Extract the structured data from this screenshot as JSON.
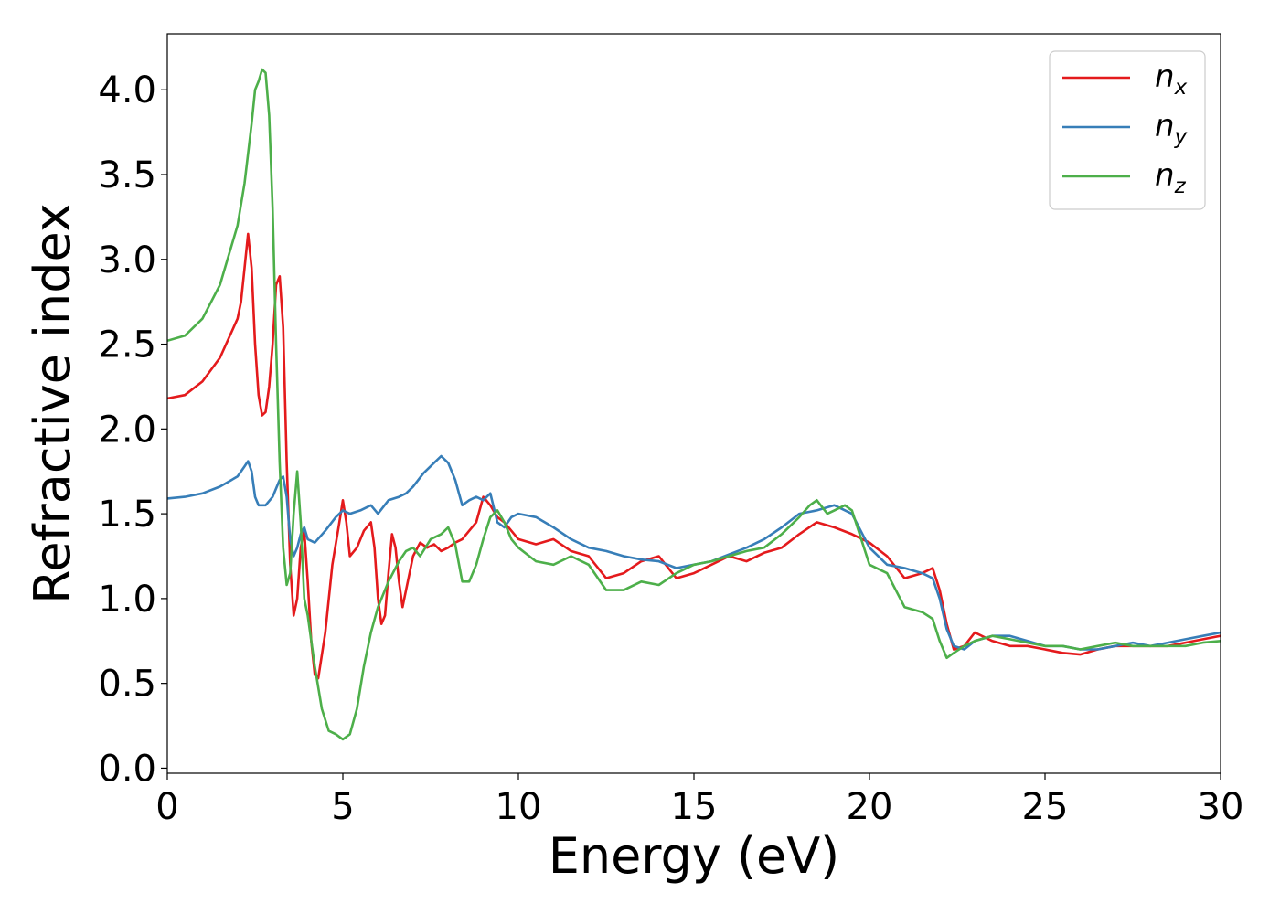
{
  "chart_data": {
    "type": "line",
    "xlabel": "Energy (eV)",
    "ylabel": "Refractive index",
    "xlim": [
      0,
      30
    ],
    "ylim": [
      -0.03,
      4.33
    ],
    "xticks": [
      "0",
      "5",
      "10",
      "15",
      "20",
      "25",
      "30"
    ],
    "yticks": [
      "0.0",
      "0.5",
      "1.0",
      "1.5",
      "2.0",
      "2.5",
      "3.0",
      "3.5",
      "4.0"
    ],
    "grid": false,
    "legend_position": "top-right",
    "series": [
      {
        "name": "n",
        "subscript": "x",
        "color": "#e41a1c",
        "x": [
          0,
          0.5,
          1,
          1.5,
          2,
          2.1,
          2.2,
          2.3,
          2.4,
          2.5,
          2.6,
          2.7,
          2.8,
          2.9,
          3.0,
          3.1,
          3.2,
          3.3,
          3.4,
          3.5,
          3.6,
          3.7,
          3.8,
          3.9,
          4.0,
          4.1,
          4.2,
          4.3,
          4.5,
          4.7,
          4.9,
          5.0,
          5.1,
          5.2,
          5.4,
          5.6,
          5.8,
          5.9,
          6.0,
          6.1,
          6.2,
          6.3,
          6.4,
          6.5,
          6.6,
          6.7,
          6.8,
          7.0,
          7.2,
          7.4,
          7.6,
          7.8,
          8.0,
          8.2,
          8.4,
          8.6,
          8.8,
          9.0,
          9.2,
          9.4,
          9.6,
          9.8,
          10.0,
          10.5,
          11.0,
          11.5,
          12.0,
          12.5,
          13.0,
          13.5,
          14.0,
          14.5,
          15.0,
          15.5,
          16.0,
          16.5,
          17.0,
          17.5,
          18.0,
          18.5,
          19.0,
          19.5,
          20.0,
          20.5,
          21.0,
          21.5,
          21.8,
          22.0,
          22.2,
          22.4,
          22.7,
          23.0,
          23.5,
          24.0,
          24.5,
          25.0,
          25.5,
          26.0,
          26.5,
          27.0,
          27.5,
          28.0,
          28.5,
          29.0,
          29.5,
          30.0
        ],
        "y": [
          2.18,
          2.2,
          2.28,
          2.42,
          2.65,
          2.75,
          2.95,
          3.15,
          2.95,
          2.5,
          2.2,
          2.08,
          2.1,
          2.25,
          2.5,
          2.85,
          2.9,
          2.6,
          1.8,
          1.2,
          0.9,
          1.0,
          1.3,
          1.4,
          1.1,
          0.75,
          0.55,
          0.53,
          0.8,
          1.2,
          1.45,
          1.58,
          1.45,
          1.25,
          1.3,
          1.4,
          1.45,
          1.3,
          1.0,
          0.85,
          0.9,
          1.15,
          1.38,
          1.3,
          1.1,
          0.95,
          1.05,
          1.25,
          1.33,
          1.3,
          1.32,
          1.28,
          1.3,
          1.33,
          1.35,
          1.4,
          1.45,
          1.6,
          1.55,
          1.48,
          1.45,
          1.4,
          1.35,
          1.32,
          1.35,
          1.28,
          1.25,
          1.12,
          1.15,
          1.22,
          1.25,
          1.12,
          1.15,
          1.2,
          1.25,
          1.22,
          1.27,
          1.3,
          1.38,
          1.45,
          1.42,
          1.38,
          1.33,
          1.25,
          1.12,
          1.15,
          1.18,
          1.05,
          0.85,
          0.7,
          0.72,
          0.8,
          0.75,
          0.72,
          0.72,
          0.7,
          0.68,
          0.67,
          0.7,
          0.72,
          0.72,
          0.72,
          0.72,
          0.74,
          0.76,
          0.78
        ]
      },
      {
        "name": "n",
        "subscript": "y",
        "color": "#377eb8",
        "x": [
          0,
          0.5,
          1,
          1.5,
          2,
          2.2,
          2.3,
          2.4,
          2.5,
          2.6,
          2.8,
          3.0,
          3.2,
          3.3,
          3.4,
          3.5,
          3.6,
          3.7,
          3.8,
          3.9,
          4.0,
          4.2,
          4.5,
          4.8,
          5.0,
          5.2,
          5.5,
          5.8,
          6.0,
          6.3,
          6.6,
          6.8,
          7.0,
          7.3,
          7.6,
          7.8,
          8.0,
          8.2,
          8.4,
          8.6,
          8.8,
          9.0,
          9.2,
          9.4,
          9.6,
          9.8,
          10.0,
          10.5,
          11.0,
          11.5,
          12.0,
          12.5,
          13.0,
          13.5,
          14.0,
          14.5,
          15.0,
          15.5,
          16.0,
          16.5,
          17.0,
          17.5,
          18.0,
          18.5,
          19.0,
          19.5,
          20.0,
          20.5,
          21.0,
          21.5,
          21.8,
          22.0,
          22.2,
          22.4,
          22.7,
          23.0,
          23.5,
          24.0,
          24.5,
          25.0,
          25.5,
          26.0,
          26.5,
          27.0,
          27.5,
          28.0,
          28.5,
          29.0,
          29.5,
          30.0
        ],
        "y": [
          1.59,
          1.6,
          1.62,
          1.66,
          1.72,
          1.78,
          1.81,
          1.75,
          1.6,
          1.55,
          1.55,
          1.6,
          1.7,
          1.72,
          1.6,
          1.35,
          1.25,
          1.3,
          1.38,
          1.42,
          1.35,
          1.33,
          1.4,
          1.48,
          1.52,
          1.5,
          1.52,
          1.55,
          1.5,
          1.58,
          1.6,
          1.62,
          1.66,
          1.74,
          1.8,
          1.84,
          1.8,
          1.7,
          1.55,
          1.58,
          1.6,
          1.58,
          1.62,
          1.45,
          1.42,
          1.48,
          1.5,
          1.48,
          1.42,
          1.35,
          1.3,
          1.28,
          1.25,
          1.23,
          1.22,
          1.18,
          1.2,
          1.22,
          1.26,
          1.3,
          1.35,
          1.42,
          1.5,
          1.52,
          1.55,
          1.5,
          1.3,
          1.2,
          1.18,
          1.15,
          1.12,
          1.0,
          0.82,
          0.72,
          0.7,
          0.75,
          0.78,
          0.78,
          0.75,
          0.72,
          0.72,
          0.7,
          0.7,
          0.72,
          0.74,
          0.72,
          0.74,
          0.76,
          0.78,
          0.8
        ]
      },
      {
        "name": "n",
        "subscript": "z",
        "color": "#4daf4a",
        "x": [
          0,
          0.5,
          1,
          1.5,
          2,
          2.2,
          2.4,
          2.5,
          2.6,
          2.7,
          2.8,
          2.9,
          3.0,
          3.1,
          3.2,
          3.3,
          3.4,
          3.5,
          3.6,
          3.7,
          3.8,
          3.9,
          4.0,
          4.2,
          4.4,
          4.6,
          4.8,
          5.0,
          5.2,
          5.4,
          5.6,
          5.8,
          6.0,
          6.3,
          6.6,
          6.8,
          7.0,
          7.2,
          7.5,
          7.8,
          8.0,
          8.2,
          8.4,
          8.6,
          8.8,
          9.0,
          9.2,
          9.4,
          9.6,
          9.8,
          10.0,
          10.5,
          11.0,
          11.5,
          12.0,
          12.5,
          13.0,
          13.5,
          14.0,
          14.5,
          15.0,
          15.5,
          16.0,
          16.5,
          17.0,
          17.5,
          18.0,
          18.3,
          18.5,
          18.8,
          19.0,
          19.3,
          19.5,
          20.0,
          20.5,
          21.0,
          21.5,
          21.8,
          22.0,
          22.2,
          22.4,
          22.7,
          23.0,
          23.5,
          24.0,
          24.5,
          25.0,
          25.5,
          26.0,
          26.5,
          27.0,
          27.5,
          28.0,
          28.5,
          29.0,
          29.5,
          30.0
        ],
        "y": [
          2.52,
          2.55,
          2.65,
          2.85,
          3.2,
          3.45,
          3.8,
          4.0,
          4.05,
          4.12,
          4.1,
          3.85,
          3.3,
          2.5,
          1.8,
          1.3,
          1.08,
          1.15,
          1.5,
          1.75,
          1.45,
          1.0,
          0.9,
          0.6,
          0.35,
          0.22,
          0.2,
          0.17,
          0.2,
          0.35,
          0.6,
          0.8,
          0.95,
          1.1,
          1.22,
          1.28,
          1.3,
          1.25,
          1.35,
          1.38,
          1.42,
          1.32,
          1.1,
          1.1,
          1.2,
          1.35,
          1.48,
          1.52,
          1.45,
          1.35,
          1.3,
          1.22,
          1.2,
          1.25,
          1.2,
          1.05,
          1.05,
          1.1,
          1.08,
          1.15,
          1.2,
          1.22,
          1.25,
          1.28,
          1.3,
          1.38,
          1.48,
          1.55,
          1.58,
          1.5,
          1.52,
          1.55,
          1.52,
          1.2,
          1.15,
          0.95,
          0.92,
          0.88,
          0.75,
          0.65,
          0.68,
          0.72,
          0.75,
          0.78,
          0.76,
          0.74,
          0.72,
          0.72,
          0.7,
          0.72,
          0.74,
          0.72,
          0.72,
          0.72,
          0.72,
          0.74,
          0.75
        ]
      }
    ]
  }
}
